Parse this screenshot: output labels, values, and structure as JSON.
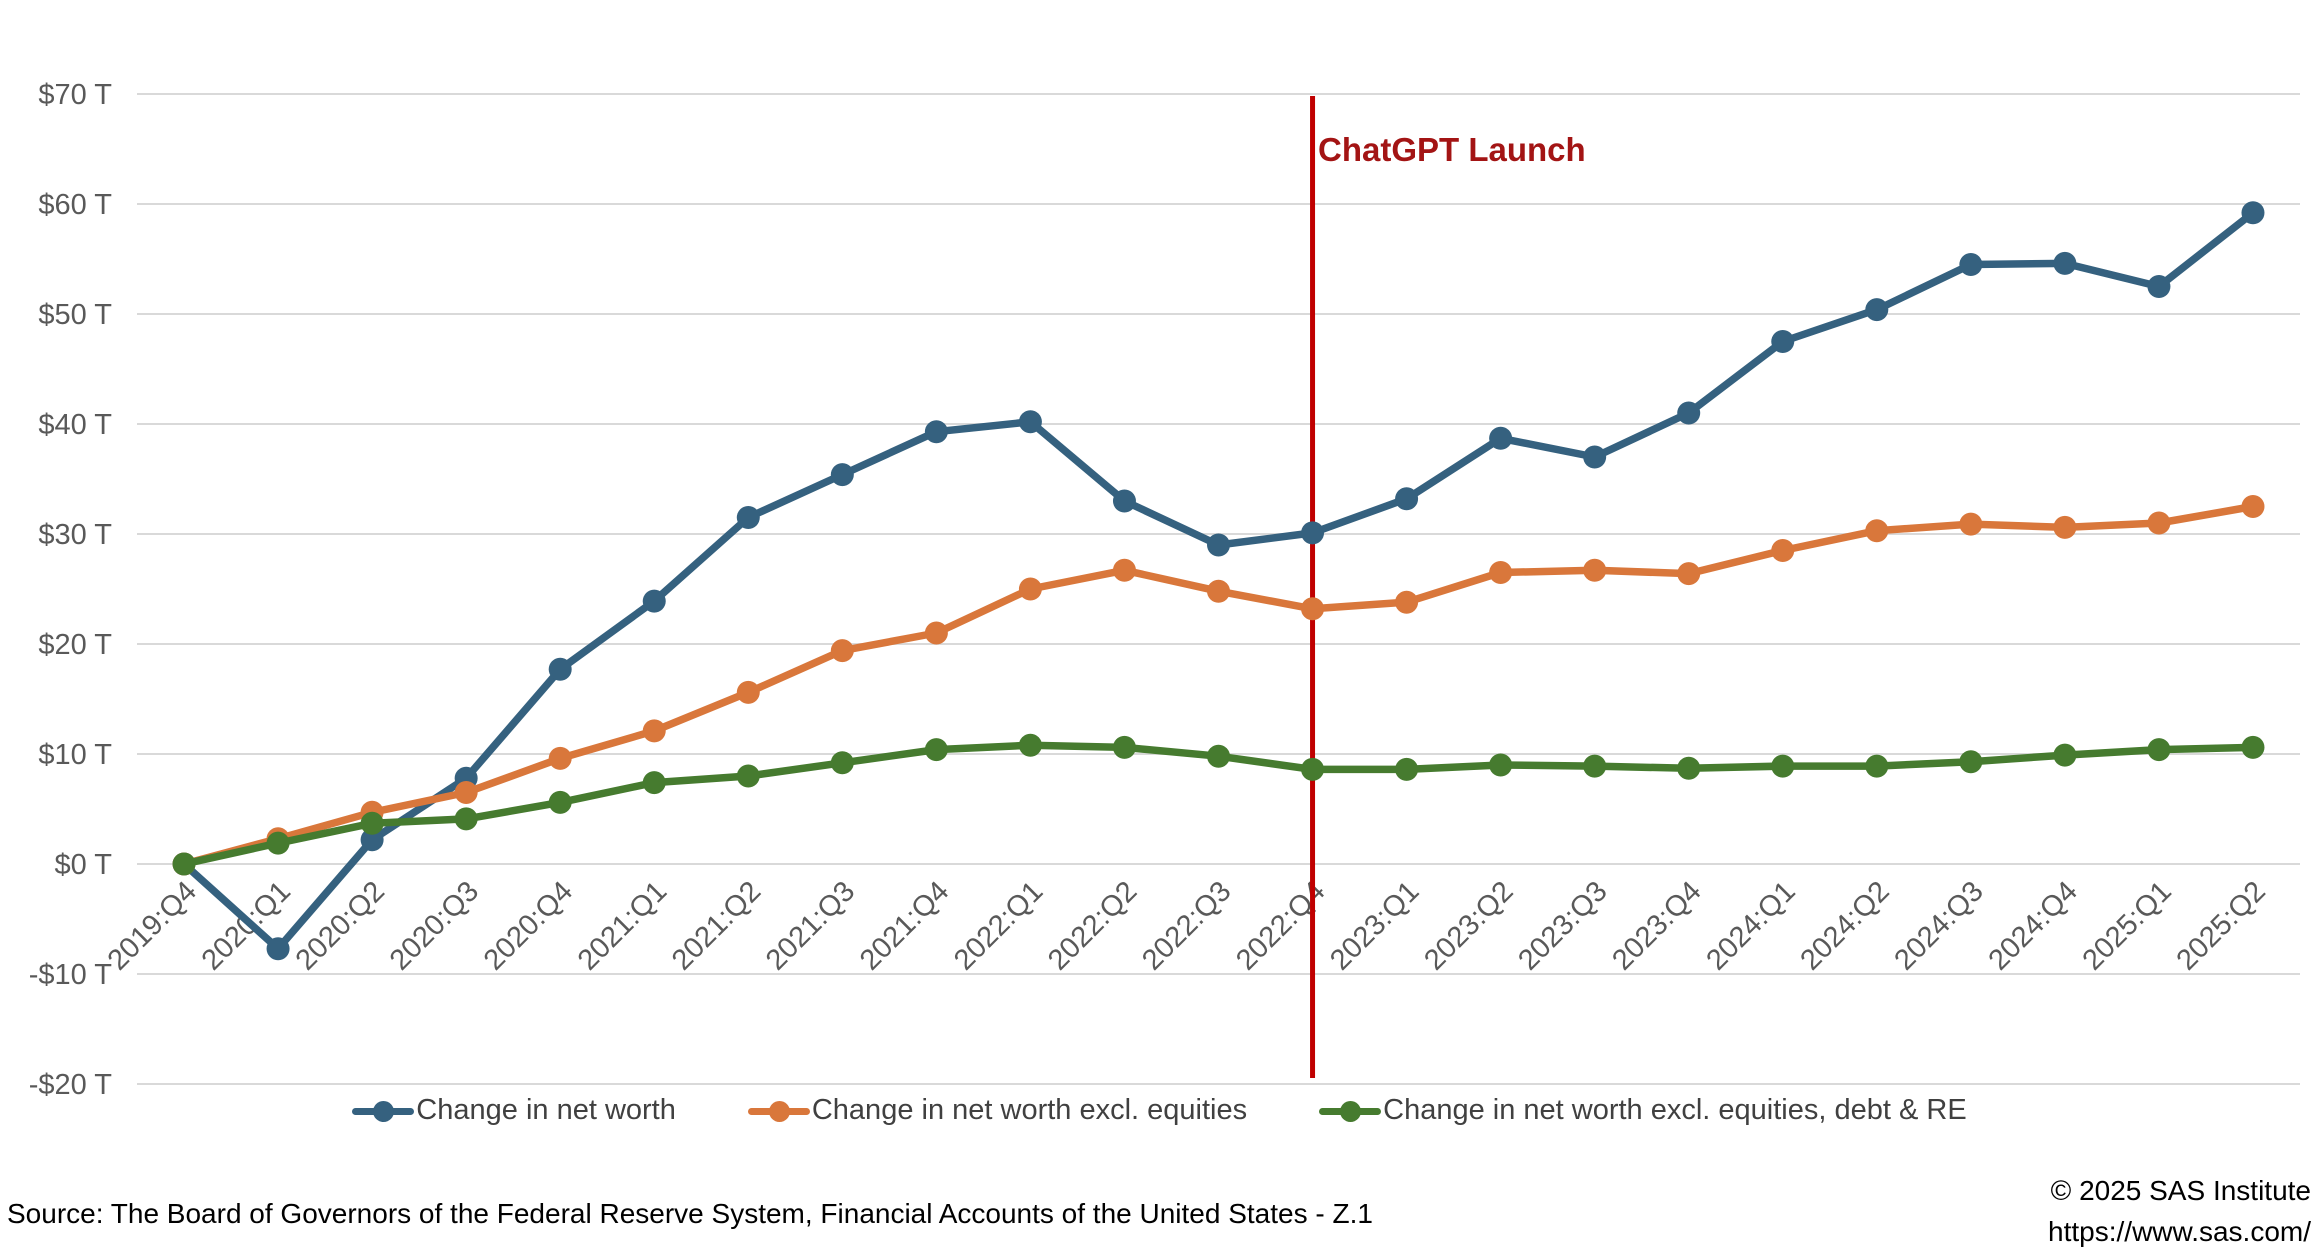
{
  "chart_data": {
    "type": "line",
    "categories": [
      "2019:Q4",
      "2020:Q1",
      "2020:Q2",
      "2020:Q3",
      "2020:Q4",
      "2021:Q1",
      "2021:Q2",
      "2021:Q3",
      "2021:Q4",
      "2022:Q1",
      "2022:Q2",
      "2022:Q3",
      "2022:Q4",
      "2023:Q1",
      "2023:Q2",
      "2023:Q3",
      "2023:Q4",
      "2024:Q1",
      "2024:Q2",
      "2024:Q3",
      "2024:Q4",
      "2025:Q1",
      "2025:Q2"
    ],
    "series": [
      {
        "name": "Change in net worth",
        "color": "#35617F",
        "values": [
          0,
          -7.7,
          2.2,
          7.8,
          17.7,
          23.9,
          31.5,
          35.4,
          39.3,
          40.2,
          33.0,
          29.0,
          30.1,
          33.2,
          38.7,
          37.0,
          41.0,
          47.5,
          50.4,
          54.5,
          54.6,
          52.5,
          59.2
        ]
      },
      {
        "name": "Change in net worth excl. equities",
        "color": "#D9773B",
        "values": [
          0,
          2.3,
          4.7,
          6.5,
          9.6,
          12.1,
          15.6,
          19.4,
          21.0,
          25.0,
          26.7,
          24.8,
          23.2,
          23.8,
          26.5,
          26.7,
          26.4,
          28.5,
          30.3,
          30.9,
          30.6,
          31.0,
          32.5
        ]
      },
      {
        "name": "Change in net worth excl. equities, debt & RE",
        "color": "#467B2F",
        "values": [
          0,
          1.9,
          3.7,
          4.1,
          5.6,
          7.4,
          8.0,
          9.2,
          10.4,
          10.8,
          10.6,
          9.8,
          8.6,
          8.6,
          9.0,
          8.9,
          8.7,
          8.9,
          8.9,
          9.3,
          9.9,
          10.4,
          10.6
        ]
      }
    ],
    "y_axis": {
      "min": -20,
      "max": 70,
      "step": 10,
      "tick_labels": [
        "-$20 T",
        "-$10 T",
        "$0 T",
        "$10 T",
        "$20 T",
        "$30 T",
        "$40 T",
        "$50 T",
        "$60 T",
        "$70 T"
      ]
    },
    "annotation": {
      "label": "ChatGPT Launch",
      "category": "2022:Q4",
      "line_color": "#C00000",
      "label_color": "#A31414"
    },
    "legend_position": "bottom",
    "grid": "horizontal"
  },
  "footer": {
    "source": "Source: The Board of Governors of the Federal Reserve System, Financial Accounts of the United States - Z.1",
    "copyright_line1": "© 2025 SAS Institute",
    "copyright_line2": "https://www.sas.com/"
  }
}
